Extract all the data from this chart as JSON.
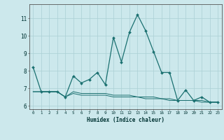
{
  "xlabel": "Humidex (Indice chaleur)",
  "background_color": "#cce8ec",
  "grid_color": "#aacfd4",
  "line_color": "#1a7070",
  "x_values": [
    0,
    1,
    2,
    3,
    4,
    5,
    6,
    7,
    8,
    9,
    10,
    11,
    12,
    13,
    14,
    15,
    16,
    17,
    18,
    19,
    20,
    21,
    22,
    23
  ],
  "series1": [
    8.2,
    6.8,
    6.8,
    6.8,
    6.5,
    7.7,
    7.3,
    7.5,
    7.9,
    7.2,
    9.9,
    8.5,
    10.2,
    11.2,
    10.3,
    9.1,
    7.9,
    7.9,
    6.3,
    6.9,
    6.3,
    6.5,
    6.2,
    6.2
  ],
  "series2": [
    6.8,
    6.8,
    6.8,
    6.8,
    6.5,
    6.8,
    6.7,
    6.7,
    6.7,
    6.7,
    6.6,
    6.6,
    6.6,
    6.5,
    6.5,
    6.5,
    6.4,
    6.4,
    6.3,
    6.3,
    6.3,
    6.3,
    6.2,
    6.2
  ],
  "series3": [
    6.8,
    6.8,
    6.8,
    6.8,
    6.5,
    6.7,
    6.6,
    6.6,
    6.6,
    6.6,
    6.5,
    6.5,
    6.5,
    6.5,
    6.4,
    6.4,
    6.4,
    6.3,
    6.3,
    6.3,
    6.3,
    6.2,
    6.2,
    6.2
  ],
  "ylim": [
    5.8,
    11.8
  ],
  "xlim": [
    -0.5,
    23.5
  ],
  "yticks": [
    6,
    7,
    8,
    9,
    10,
    11
  ],
  "xticks": [
    0,
    1,
    2,
    3,
    4,
    5,
    6,
    7,
    8,
    9,
    10,
    11,
    12,
    13,
    14,
    15,
    16,
    17,
    18,
    19,
    20,
    21,
    22,
    23
  ]
}
